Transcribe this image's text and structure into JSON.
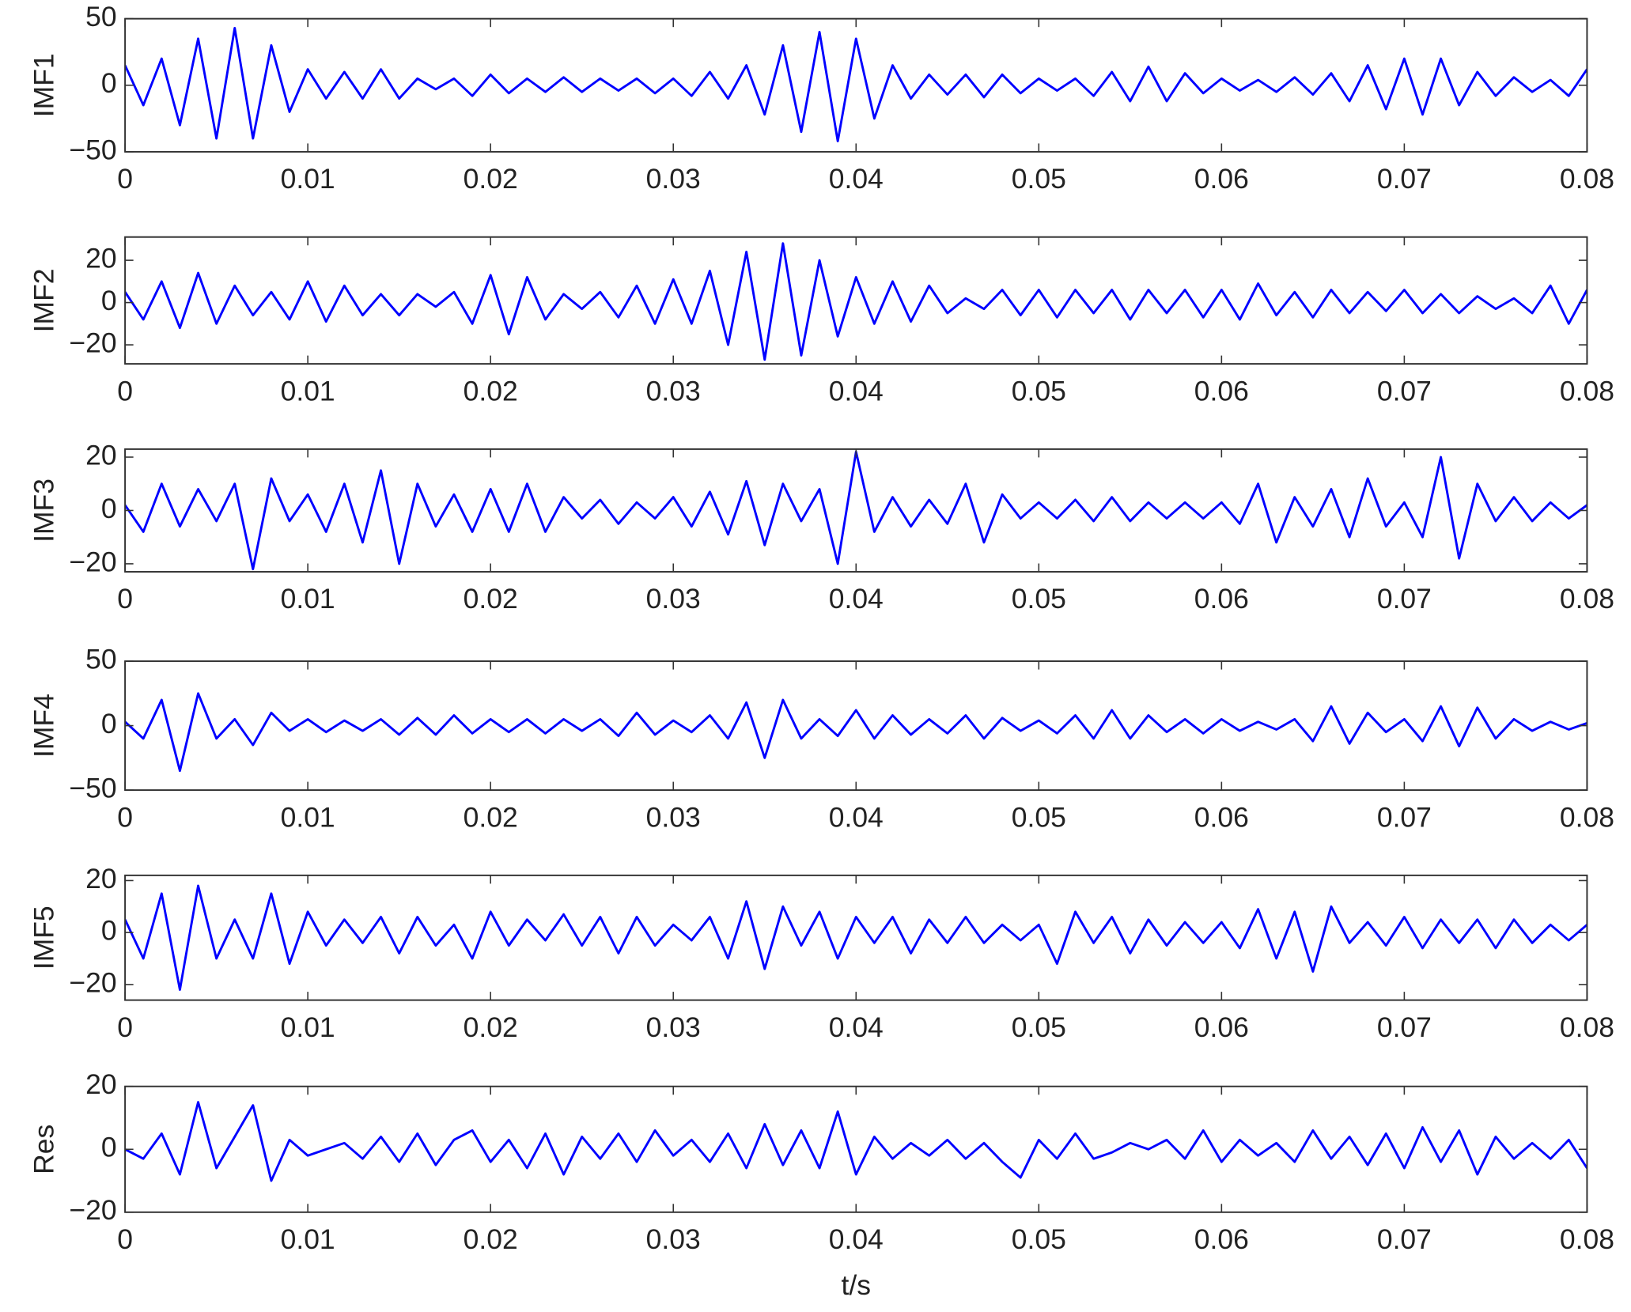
{
  "chart_data": [
    {
      "type": "line",
      "ylabel": "IMF1",
      "color": "#0000ff",
      "x": [
        0,
        0.001,
        0.002,
        0.003,
        0.004,
        0.005,
        0.006,
        0.007,
        0.008,
        0.009,
        0.01,
        0.011,
        0.012,
        0.013,
        0.014,
        0.015,
        0.016,
        0.017,
        0.018,
        0.019,
        0.02,
        0.021,
        0.022,
        0.023,
        0.024,
        0.025,
        0.026,
        0.027,
        0.028,
        0.029,
        0.03,
        0.031,
        0.032,
        0.033,
        0.034,
        0.035,
        0.036,
        0.037,
        0.038,
        0.039,
        0.04,
        0.041,
        0.042,
        0.043,
        0.044,
        0.045,
        0.046,
        0.047,
        0.048,
        0.049,
        0.05,
        0.051,
        0.052,
        0.053,
        0.054,
        0.055,
        0.056,
        0.057,
        0.058,
        0.059,
        0.06,
        0.061,
        0.062,
        0.063,
        0.064,
        0.065,
        0.066,
        0.067,
        0.068,
        0.069,
        0.07,
        0.071,
        0.072,
        0.073,
        0.074,
        0.075,
        0.076,
        0.077,
        0.078,
        0.079,
        0.08
      ],
      "values": [
        15,
        -15,
        20,
        -30,
        35,
        -40,
        43,
        -40,
        30,
        -20,
        12,
        -10,
        10,
        -10,
        12,
        -10,
        5,
        -3,
        5,
        -8,
        8,
        -6,
        5,
        -5,
        6,
        -5,
        5,
        -4,
        5,
        -6,
        5,
        -8,
        10,
        -10,
        15,
        -22,
        30,
        -35,
        40,
        -42,
        35,
        -25,
        15,
        -10,
        8,
        -7,
        8,
        -9,
        8,
        -6,
        5,
        -4,
        5,
        -8,
        10,
        -12,
        14,
        -12,
        9,
        -6,
        5,
        -4,
        4,
        -5,
        6,
        -7,
        9,
        -12,
        15,
        -18,
        20,
        -22,
        20,
        -15,
        10,
        -8,
        6,
        -5,
        4,
        -8,
        12
      ],
      "xlim": [
        0,
        0.08
      ],
      "xticks": [
        0,
        0.01,
        0.02,
        0.03,
        0.04,
        0.05,
        0.06,
        0.07,
        0.08
      ],
      "ylim": [
        -50,
        50
      ],
      "yticks": [
        {
          "value": -50,
          "label": "−50"
        },
        0,
        50
      ]
    },
    {
      "type": "line",
      "ylabel": "IMF2",
      "color": "#0000ff",
      "x": [
        0,
        0.001,
        0.002,
        0.003,
        0.004,
        0.005,
        0.006,
        0.007,
        0.008,
        0.009,
        0.01,
        0.011,
        0.012,
        0.013,
        0.014,
        0.015,
        0.016,
        0.017,
        0.018,
        0.019,
        0.02,
        0.021,
        0.022,
        0.023,
        0.024,
        0.025,
        0.026,
        0.027,
        0.028,
        0.029,
        0.03,
        0.031,
        0.032,
        0.033,
        0.034,
        0.035,
        0.036,
        0.037,
        0.038,
        0.039,
        0.04,
        0.041,
        0.042,
        0.043,
        0.044,
        0.045,
        0.046,
        0.047,
        0.048,
        0.049,
        0.05,
        0.051,
        0.052,
        0.053,
        0.054,
        0.055,
        0.056,
        0.057,
        0.058,
        0.059,
        0.06,
        0.061,
        0.062,
        0.063,
        0.064,
        0.065,
        0.066,
        0.067,
        0.068,
        0.069,
        0.07,
        0.071,
        0.072,
        0.073,
        0.074,
        0.075,
        0.076,
        0.077,
        0.078,
        0.079,
        0.08
      ],
      "values": [
        5,
        -8,
        10,
        -12,
        14,
        -10,
        8,
        -6,
        5,
        -8,
        10,
        -9,
        8,
        -6,
        4,
        -6,
        4,
        -2,
        5,
        -10,
        13,
        -15,
        12,
        -8,
        4,
        -3,
        5,
        -7,
        8,
        -10,
        11,
        -10,
        15,
        -20,
        24,
        -27,
        28,
        -25,
        20,
        -16,
        12,
        -10,
        10,
        -9,
        8,
        -5,
        2,
        -3,
        6,
        -6,
        6,
        -7,
        6,
        -5,
        6,
        -8,
        6,
        -5,
        6,
        -7,
        6,
        -8,
        9,
        -6,
        5,
        -7,
        6,
        -5,
        5,
        -4,
        6,
        -5,
        4,
        -5,
        3,
        -3,
        2,
        -5,
        8,
        -10,
        6
      ],
      "xlim": [
        0,
        0.08
      ],
      "xticks": [
        0,
        0.01,
        0.02,
        0.03,
        0.04,
        0.05,
        0.06,
        0.07,
        0.08
      ],
      "ylim": [
        -29,
        31
      ],
      "yticks": [
        {
          "value": -20,
          "label": "−20"
        },
        0,
        20
      ]
    },
    {
      "type": "line",
      "ylabel": "IMF3",
      "color": "#0000ff",
      "x": [
        0,
        0.001,
        0.002,
        0.003,
        0.004,
        0.005,
        0.006,
        0.007,
        0.008,
        0.009,
        0.01,
        0.011,
        0.012,
        0.013,
        0.014,
        0.015,
        0.016,
        0.017,
        0.018,
        0.019,
        0.02,
        0.021,
        0.022,
        0.023,
        0.024,
        0.025,
        0.026,
        0.027,
        0.028,
        0.029,
        0.03,
        0.031,
        0.032,
        0.033,
        0.034,
        0.035,
        0.036,
        0.037,
        0.038,
        0.039,
        0.04,
        0.041,
        0.042,
        0.043,
        0.044,
        0.045,
        0.046,
        0.047,
        0.048,
        0.049,
        0.05,
        0.051,
        0.052,
        0.053,
        0.054,
        0.055,
        0.056,
        0.057,
        0.058,
        0.059,
        0.06,
        0.061,
        0.062,
        0.063,
        0.064,
        0.065,
        0.066,
        0.067,
        0.068,
        0.069,
        0.07,
        0.071,
        0.072,
        0.073,
        0.074,
        0.075,
        0.076,
        0.077,
        0.078,
        0.079,
        0.08
      ],
      "values": [
        2,
        -8,
        10,
        -6,
        8,
        -4,
        10,
        -22,
        12,
        -4,
        6,
        -8,
        10,
        -12,
        15,
        -20,
        10,
        -6,
        6,
        -8,
        8,
        -8,
        10,
        -8,
        5,
        -3,
        4,
        -5,
        3,
        -3,
        5,
        -6,
        7,
        -9,
        11,
        -13,
        10,
        -4,
        8,
        -20,
        22,
        -8,
        5,
        -6,
        4,
        -5,
        10,
        -12,
        6,
        -3,
        3,
        -3,
        4,
        -4,
        5,
        -4,
        3,
        -3,
        3,
        -3,
        3,
        -5,
        10,
        -12,
        5,
        -6,
        8,
        -10,
        12,
        -6,
        3,
        -10,
        20,
        -18,
        10,
        -4,
        5,
        -4,
        3,
        -3,
        2
      ],
      "xlim": [
        0,
        0.08
      ],
      "xticks": [
        0,
        0.01,
        0.02,
        0.03,
        0.04,
        0.05,
        0.06,
        0.07,
        0.08
      ],
      "ylim": [
        -23,
        23
      ],
      "yticks": [
        {
          "value": -20,
          "label": "−20"
        },
        0,
        20
      ]
    },
    {
      "type": "line",
      "ylabel": "IMF4",
      "color": "#0000ff",
      "x": [
        0,
        0.001,
        0.002,
        0.003,
        0.004,
        0.005,
        0.006,
        0.007,
        0.008,
        0.009,
        0.01,
        0.011,
        0.012,
        0.013,
        0.014,
        0.015,
        0.016,
        0.017,
        0.018,
        0.019,
        0.02,
        0.021,
        0.022,
        0.023,
        0.024,
        0.025,
        0.026,
        0.027,
        0.028,
        0.029,
        0.03,
        0.031,
        0.032,
        0.033,
        0.034,
        0.035,
        0.036,
        0.037,
        0.038,
        0.039,
        0.04,
        0.041,
        0.042,
        0.043,
        0.044,
        0.045,
        0.046,
        0.047,
        0.048,
        0.049,
        0.05,
        0.051,
        0.052,
        0.053,
        0.054,
        0.055,
        0.056,
        0.057,
        0.058,
        0.059,
        0.06,
        0.061,
        0.062,
        0.063,
        0.064,
        0.065,
        0.066,
        0.067,
        0.068,
        0.069,
        0.07,
        0.071,
        0.072,
        0.073,
        0.074,
        0.075,
        0.076,
        0.077,
        0.078,
        0.079,
        0.08
      ],
      "values": [
        3,
        -10,
        20,
        -35,
        25,
        -10,
        5,
        -15,
        10,
        -4,
        5,
        -5,
        4,
        -4,
        5,
        -7,
        6,
        -7,
        8,
        -6,
        5,
        -5,
        5,
        -6,
        5,
        -4,
        5,
        -8,
        10,
        -7,
        4,
        -5,
        8,
        -10,
        18,
        -25,
        20,
        -10,
        5,
        -8,
        12,
        -10,
        8,
        -7,
        5,
        -6,
        8,
        -10,
        6,
        -4,
        4,
        -6,
        8,
        -10,
        12,
        -10,
        8,
        -5,
        5,
        -6,
        5,
        -4,
        3,
        -3,
        5,
        -12,
        15,
        -14,
        10,
        -5,
        5,
        -12,
        15,
        -16,
        14,
        -10,
        5,
        -4,
        3,
        -3,
        2
      ],
      "xlim": [
        0,
        0.08
      ],
      "xticks": [
        0,
        0.01,
        0.02,
        0.03,
        0.04,
        0.05,
        0.06,
        0.07,
        0.08
      ],
      "ylim": [
        -50,
        50
      ],
      "yticks": [
        {
          "value": -50,
          "label": "−50"
        },
        0,
        50
      ]
    },
    {
      "type": "line",
      "ylabel": "IMF5",
      "color": "#0000ff",
      "x": [
        0,
        0.001,
        0.002,
        0.003,
        0.004,
        0.005,
        0.006,
        0.007,
        0.008,
        0.009,
        0.01,
        0.011,
        0.012,
        0.013,
        0.014,
        0.015,
        0.016,
        0.017,
        0.018,
        0.019,
        0.02,
        0.021,
        0.022,
        0.023,
        0.024,
        0.025,
        0.026,
        0.027,
        0.028,
        0.029,
        0.03,
        0.031,
        0.032,
        0.033,
        0.034,
        0.035,
        0.036,
        0.037,
        0.038,
        0.039,
        0.04,
        0.041,
        0.042,
        0.043,
        0.044,
        0.045,
        0.046,
        0.047,
        0.048,
        0.049,
        0.05,
        0.051,
        0.052,
        0.053,
        0.054,
        0.055,
        0.056,
        0.057,
        0.058,
        0.059,
        0.06,
        0.061,
        0.062,
        0.063,
        0.064,
        0.065,
        0.066,
        0.067,
        0.068,
        0.069,
        0.07,
        0.071,
        0.072,
        0.073,
        0.074,
        0.075,
        0.076,
        0.077,
        0.078,
        0.079,
        0.08
      ],
      "values": [
        5,
        -10,
        15,
        -22,
        18,
        -10,
        5,
        -10,
        15,
        -12,
        8,
        -5,
        5,
        -4,
        6,
        -8,
        6,
        -5,
        3,
        -10,
        8,
        -5,
        5,
        -3,
        7,
        -5,
        6,
        -8,
        6,
        -5,
        3,
        -3,
        6,
        -10,
        12,
        -14,
        10,
        -5,
        8,
        -10,
        6,
        -4,
        6,
        -8,
        5,
        -4,
        6,
        -4,
        3,
        -3,
        3,
        -12,
        8,
        -4,
        6,
        -8,
        5,
        -5,
        4,
        -4,
        4,
        -6,
        9,
        -10,
        8,
        -15,
        10,
        -4,
        4,
        -5,
        6,
        -6,
        5,
        -4,
        5,
        -6,
        5,
        -4,
        3,
        -3,
        3
      ],
      "xlim": [
        0,
        0.08
      ],
      "xticks": [
        0,
        0.01,
        0.02,
        0.03,
        0.04,
        0.05,
        0.06,
        0.07,
        0.08
      ],
      "ylim": [
        -26,
        22
      ],
      "yticks": [
        {
          "value": -20,
          "label": "−20"
        },
        0,
        20
      ]
    },
    {
      "type": "line",
      "ylabel": "Res",
      "xlabel": "t/s",
      "color": "#0000ff",
      "x": [
        0,
        0.001,
        0.002,
        0.003,
        0.004,
        0.005,
        0.006,
        0.007,
        0.008,
        0.009,
        0.01,
        0.011,
        0.012,
        0.013,
        0.014,
        0.015,
        0.016,
        0.017,
        0.018,
        0.019,
        0.02,
        0.021,
        0.022,
        0.023,
        0.024,
        0.025,
        0.026,
        0.027,
        0.028,
        0.029,
        0.03,
        0.031,
        0.032,
        0.033,
        0.034,
        0.035,
        0.036,
        0.037,
        0.038,
        0.039,
        0.04,
        0.041,
        0.042,
        0.043,
        0.044,
        0.045,
        0.046,
        0.047,
        0.048,
        0.049,
        0.05,
        0.051,
        0.052,
        0.053,
        0.054,
        0.055,
        0.056,
        0.057,
        0.058,
        0.059,
        0.06,
        0.061,
        0.062,
        0.063,
        0.064,
        0.065,
        0.066,
        0.067,
        0.068,
        0.069,
        0.07,
        0.071,
        0.072,
        0.073,
        0.074,
        0.075,
        0.076,
        0.077,
        0.078,
        0.079,
        0.08
      ],
      "values": [
        0,
        -3,
        5,
        -8,
        15,
        -6,
        4,
        14,
        -10,
        3,
        -2,
        0,
        2,
        -3,
        4,
        -4,
        5,
        -5,
        3,
        6,
        -4,
        3,
        -6,
        5,
        -8,
        4,
        -3,
        5,
        -4,
        6,
        -2,
        3,
        -4,
        5,
        -6,
        8,
        -5,
        6,
        -6,
        12,
        -8,
        4,
        -3,
        2,
        -2,
        3,
        -3,
        2,
        -4,
        -9,
        3,
        -3,
        5,
        -3,
        -1,
        2,
        0,
        3,
        -3,
        6,
        -4,
        3,
        -2,
        2,
        -4,
        6,
        -3,
        4,
        -5,
        5,
        -6,
        7,
        -4,
        6,
        -8,
        4,
        -3,
        2,
        -3,
        3,
        -6
      ],
      "xlim": [
        0,
        0.08
      ],
      "xticks": [
        0,
        0.01,
        0.02,
        0.03,
        0.04,
        0.05,
        0.06,
        0.07,
        0.08
      ],
      "ylim": [
        -20,
        20
      ],
      "yticks": [
        {
          "value": -20,
          "label": "−20"
        },
        0,
        20
      ]
    }
  ]
}
